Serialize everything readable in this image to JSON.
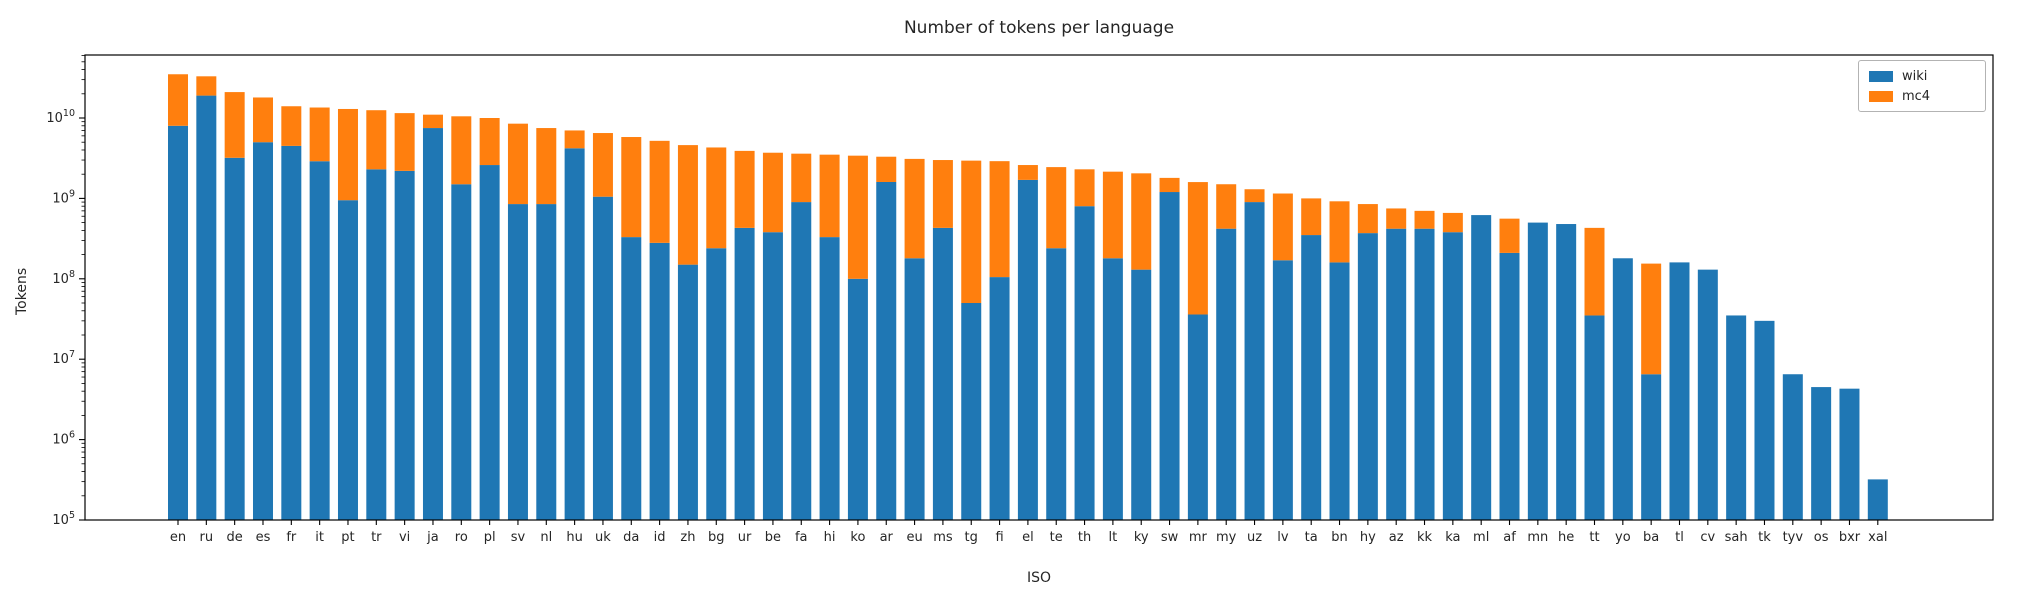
{
  "figure": {
    "title": "Number of tokens per language",
    "xlabel": "ISO",
    "ylabel": "Tokens"
  },
  "chart_data": {
    "type": "bar",
    "stacked": true,
    "yscale": "log",
    "ylim": [
      100000.0,
      61000000000.0
    ],
    "ytick_labels": [
      "10^5",
      "10^6",
      "10^7",
      "10^8",
      "10^9",
      "10^10"
    ],
    "title": "Number of tokens per language",
    "xlabel": "ISO",
    "ylabel": "Tokens",
    "grid": false,
    "legend_position": "upper right",
    "categories": [
      "en",
      "ru",
      "de",
      "es",
      "fr",
      "it",
      "pt",
      "tr",
      "vi",
      "ja",
      "ro",
      "pl",
      "sv",
      "nl",
      "hu",
      "uk",
      "da",
      "id",
      "zh",
      "bg",
      "ur",
      "be",
      "fa",
      "hi",
      "ko",
      "ar",
      "eu",
      "ms",
      "tg",
      "fi",
      "el",
      "te",
      "th",
      "lt",
      "ky",
      "sw",
      "mr",
      "my",
      "uz",
      "lv",
      "ta",
      "bn",
      "hy",
      "az",
      "kk",
      "ka",
      "ml",
      "af",
      "mn",
      "he",
      "tt",
      "yo",
      "ba",
      "tl",
      "cv",
      "sah",
      "tk",
      "tyv",
      "os",
      "bxr",
      "xal"
    ],
    "series": [
      {
        "name": "wiki",
        "color": "#1f77b4",
        "values": [
          8000000000.0,
          19000000000.0,
          3200000000.0,
          5000000000.0,
          4500000000.0,
          2900000000.0,
          950000000.0,
          2300000000.0,
          2200000000.0,
          7500000000.0,
          1500000000.0,
          2600000000.0,
          850000000.0,
          850000000.0,
          4200000000.0,
          1050000000.0,
          330000000.0,
          280000000.0,
          150000000.0,
          240000000.0,
          430000000.0,
          380000000.0,
          900000000.0,
          330000000.0,
          100000000.0,
          1600000000.0,
          180000000.0,
          430000000.0,
          50000000.0,
          105000000.0,
          1700000000.0,
          240000000.0,
          800000000.0,
          180000000.0,
          130000000.0,
          1200000000.0,
          36000000.0,
          420000000.0,
          900000000.0,
          170000000.0,
          350000000.0,
          160000000.0,
          370000000.0,
          420000000.0,
          420000000.0,
          380000000.0,
          620000000.0,
          210000000.0,
          500000000.0,
          480000000.0,
          35000000.0,
          180000000.0,
          6500000.0,
          160000000.0,
          130000000.0,
          35000000.0,
          30000000.0,
          6500000.0,
          4500000.0,
          4300000.0,
          320000.0
        ]
      },
      {
        "name": "mc4",
        "color": "#ff7f0e",
        "values": [
          27000000000.0,
          14000000000.0,
          17800000000.0,
          13000000000.0,
          9500000000.0,
          10600000000.0,
          12000000000.0,
          10200000000.0,
          9300000000.0,
          3500000000.0,
          9000000000.0,
          7400000000.0,
          7650000000.0,
          6650000000.0,
          2800000000.0,
          5450000000.0,
          5470000000.0,
          4920000000.0,
          4450000000.0,
          4060000000.0,
          3470000000.0,
          3320000000.0,
          2700000000.0,
          3170000000.0,
          3300000000.0,
          1700000000.0,
          2920000000.0,
          2570000000.0,
          2900000000.0,
          2800000000.0,
          900000000.0,
          2210000000.0,
          1500000000.0,
          1970000000.0,
          1920000000.0,
          600000000.0,
          1560000000.0,
          1080000000.0,
          400000000.0,
          980000000.0,
          650000000.0,
          760000000.0,
          480000000.0,
          330000000.0,
          280000000.0,
          280000000.0,
          0,
          350000000.0,
          0,
          0,
          395000000.0,
          0,
          148000000.0,
          0,
          0,
          0,
          0,
          0,
          0,
          0,
          0
        ]
      }
    ]
  }
}
